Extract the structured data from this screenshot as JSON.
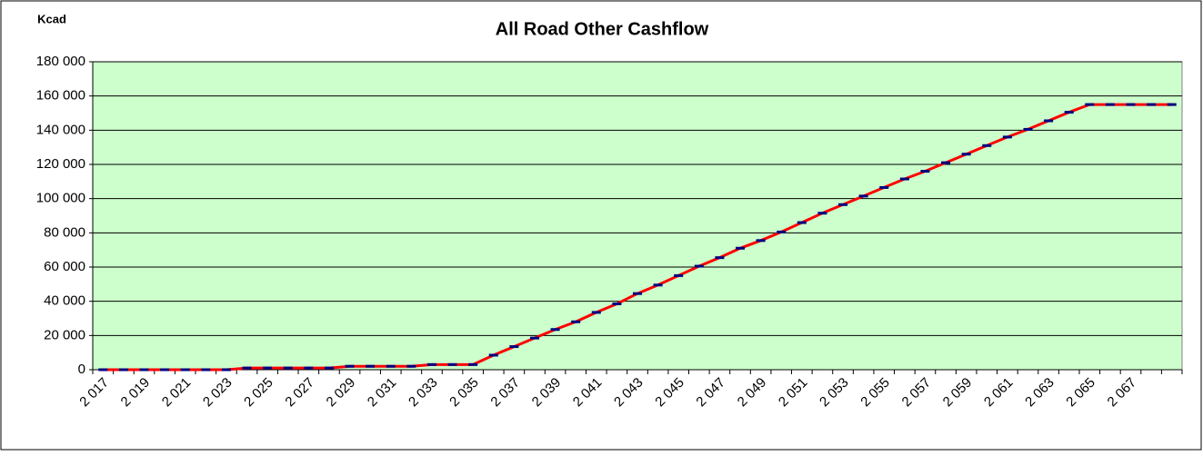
{
  "chart_data": {
    "type": "line",
    "title": "All Road Other Cashflow",
    "y_label": "Kcad",
    "categories": [
      "2 017",
      null,
      "2 019",
      null,
      "2 021",
      null,
      "2 023",
      null,
      "2 025",
      null,
      "2 027",
      null,
      "2 029",
      null,
      "2 031",
      null,
      "2 033",
      null,
      "2 035",
      null,
      "2 037",
      null,
      "2 039",
      null,
      "2 041",
      null,
      "2 043",
      null,
      "2 045",
      null,
      "2 047",
      null,
      "2 049",
      null,
      "2 051",
      null,
      "2 053",
      null,
      "2 055",
      null,
      "2 057",
      null,
      "2 059",
      null,
      "2 061",
      null,
      "2 063",
      null,
      "2 065",
      null,
      "2 067",
      null,
      null
    ],
    "series": [
      {
        "color": "#ff0000",
        "marker_color": "#000080",
        "values": [
          0,
          0,
          0,
          0,
          0,
          0,
          0,
          1000,
          1000,
          1000,
          1000,
          1000,
          2000,
          2000,
          2000,
          2000,
          3000,
          3000,
          3000,
          8500,
          13500,
          18500,
          23500,
          28000,
          33500,
          38500,
          44500,
          49500,
          55000,
          60500,
          65500,
          71000,
          75500,
          80500,
          86000,
          91500,
          96500,
          101500,
          106500,
          111500,
          116000,
          121000,
          126000,
          131000,
          136000,
          140500,
          145500,
          150500,
          155000,
          155000,
          155000,
          155000,
          155000
        ]
      }
    ],
    "ylim": [
      0,
      180000
    ],
    "yticks": [
      0,
      {
        "value": 20000,
        "label": "20 000"
      },
      {
        "value": 40000,
        "label": "40 000"
      },
      {
        "value": 60000,
        "label": "60 000"
      },
      {
        "value": 80000,
        "label": "80 000"
      },
      {
        "value": 100000,
        "label": "100 000"
      },
      {
        "value": 120000,
        "label": "120 000"
      },
      {
        "value": 140000,
        "label": "140 000"
      },
      {
        "value": 160000,
        "label": "160 000"
      },
      {
        "value": 180000,
        "label": "180 000"
      }
    ],
    "grid": true,
    "plot_background": "#ccffcc"
  }
}
